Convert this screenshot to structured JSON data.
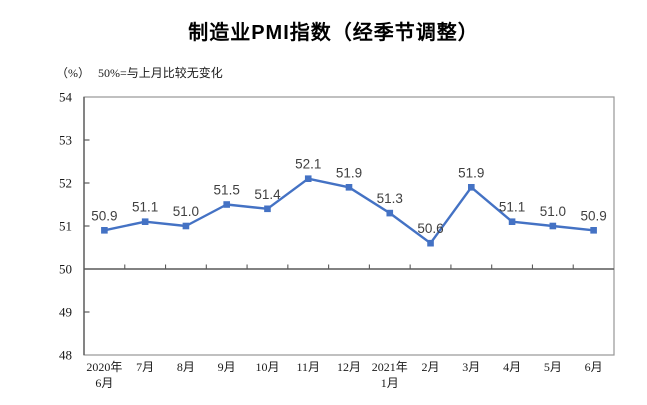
{
  "title": "制造业PMI指数（经季节调整）",
  "y_axis_unit": "（%）",
  "note": "50%=与上月比较无变化",
  "chart_data": {
    "type": "line",
    "title": "制造业PMI指数（经季节调整）",
    "ylabel": "（%）",
    "annotation": "50%=与上月比较无变化",
    "categories": [
      [
        "2020年",
        "6月"
      ],
      [
        "7月"
      ],
      [
        "8月"
      ],
      [
        "9月"
      ],
      [
        "10月"
      ],
      [
        "11月"
      ],
      [
        "12月"
      ],
      [
        "2021年",
        "1月"
      ],
      [
        "2月"
      ],
      [
        "3月"
      ],
      [
        "4月"
      ],
      [
        "5月"
      ],
      [
        "6月"
      ]
    ],
    "values": [
      50.9,
      51.1,
      51.0,
      51.5,
      51.4,
      52.1,
      51.9,
      51.3,
      50.6,
      51.9,
      51.1,
      51.0,
      50.9
    ],
    "ylim": [
      48,
      54
    ],
    "y_ticks": [
      48,
      49,
      50,
      51,
      52,
      53,
      54
    ],
    "baseline_value": 50,
    "grid": false,
    "legend_position": "none",
    "data_labels": true,
    "colors": {
      "line": "#4472C4",
      "marker": "#4472C4",
      "data_label": "#404040",
      "axis_line": "#595959",
      "plot_border": "#969696",
      "tick_label": "#1a1a1a"
    }
  }
}
